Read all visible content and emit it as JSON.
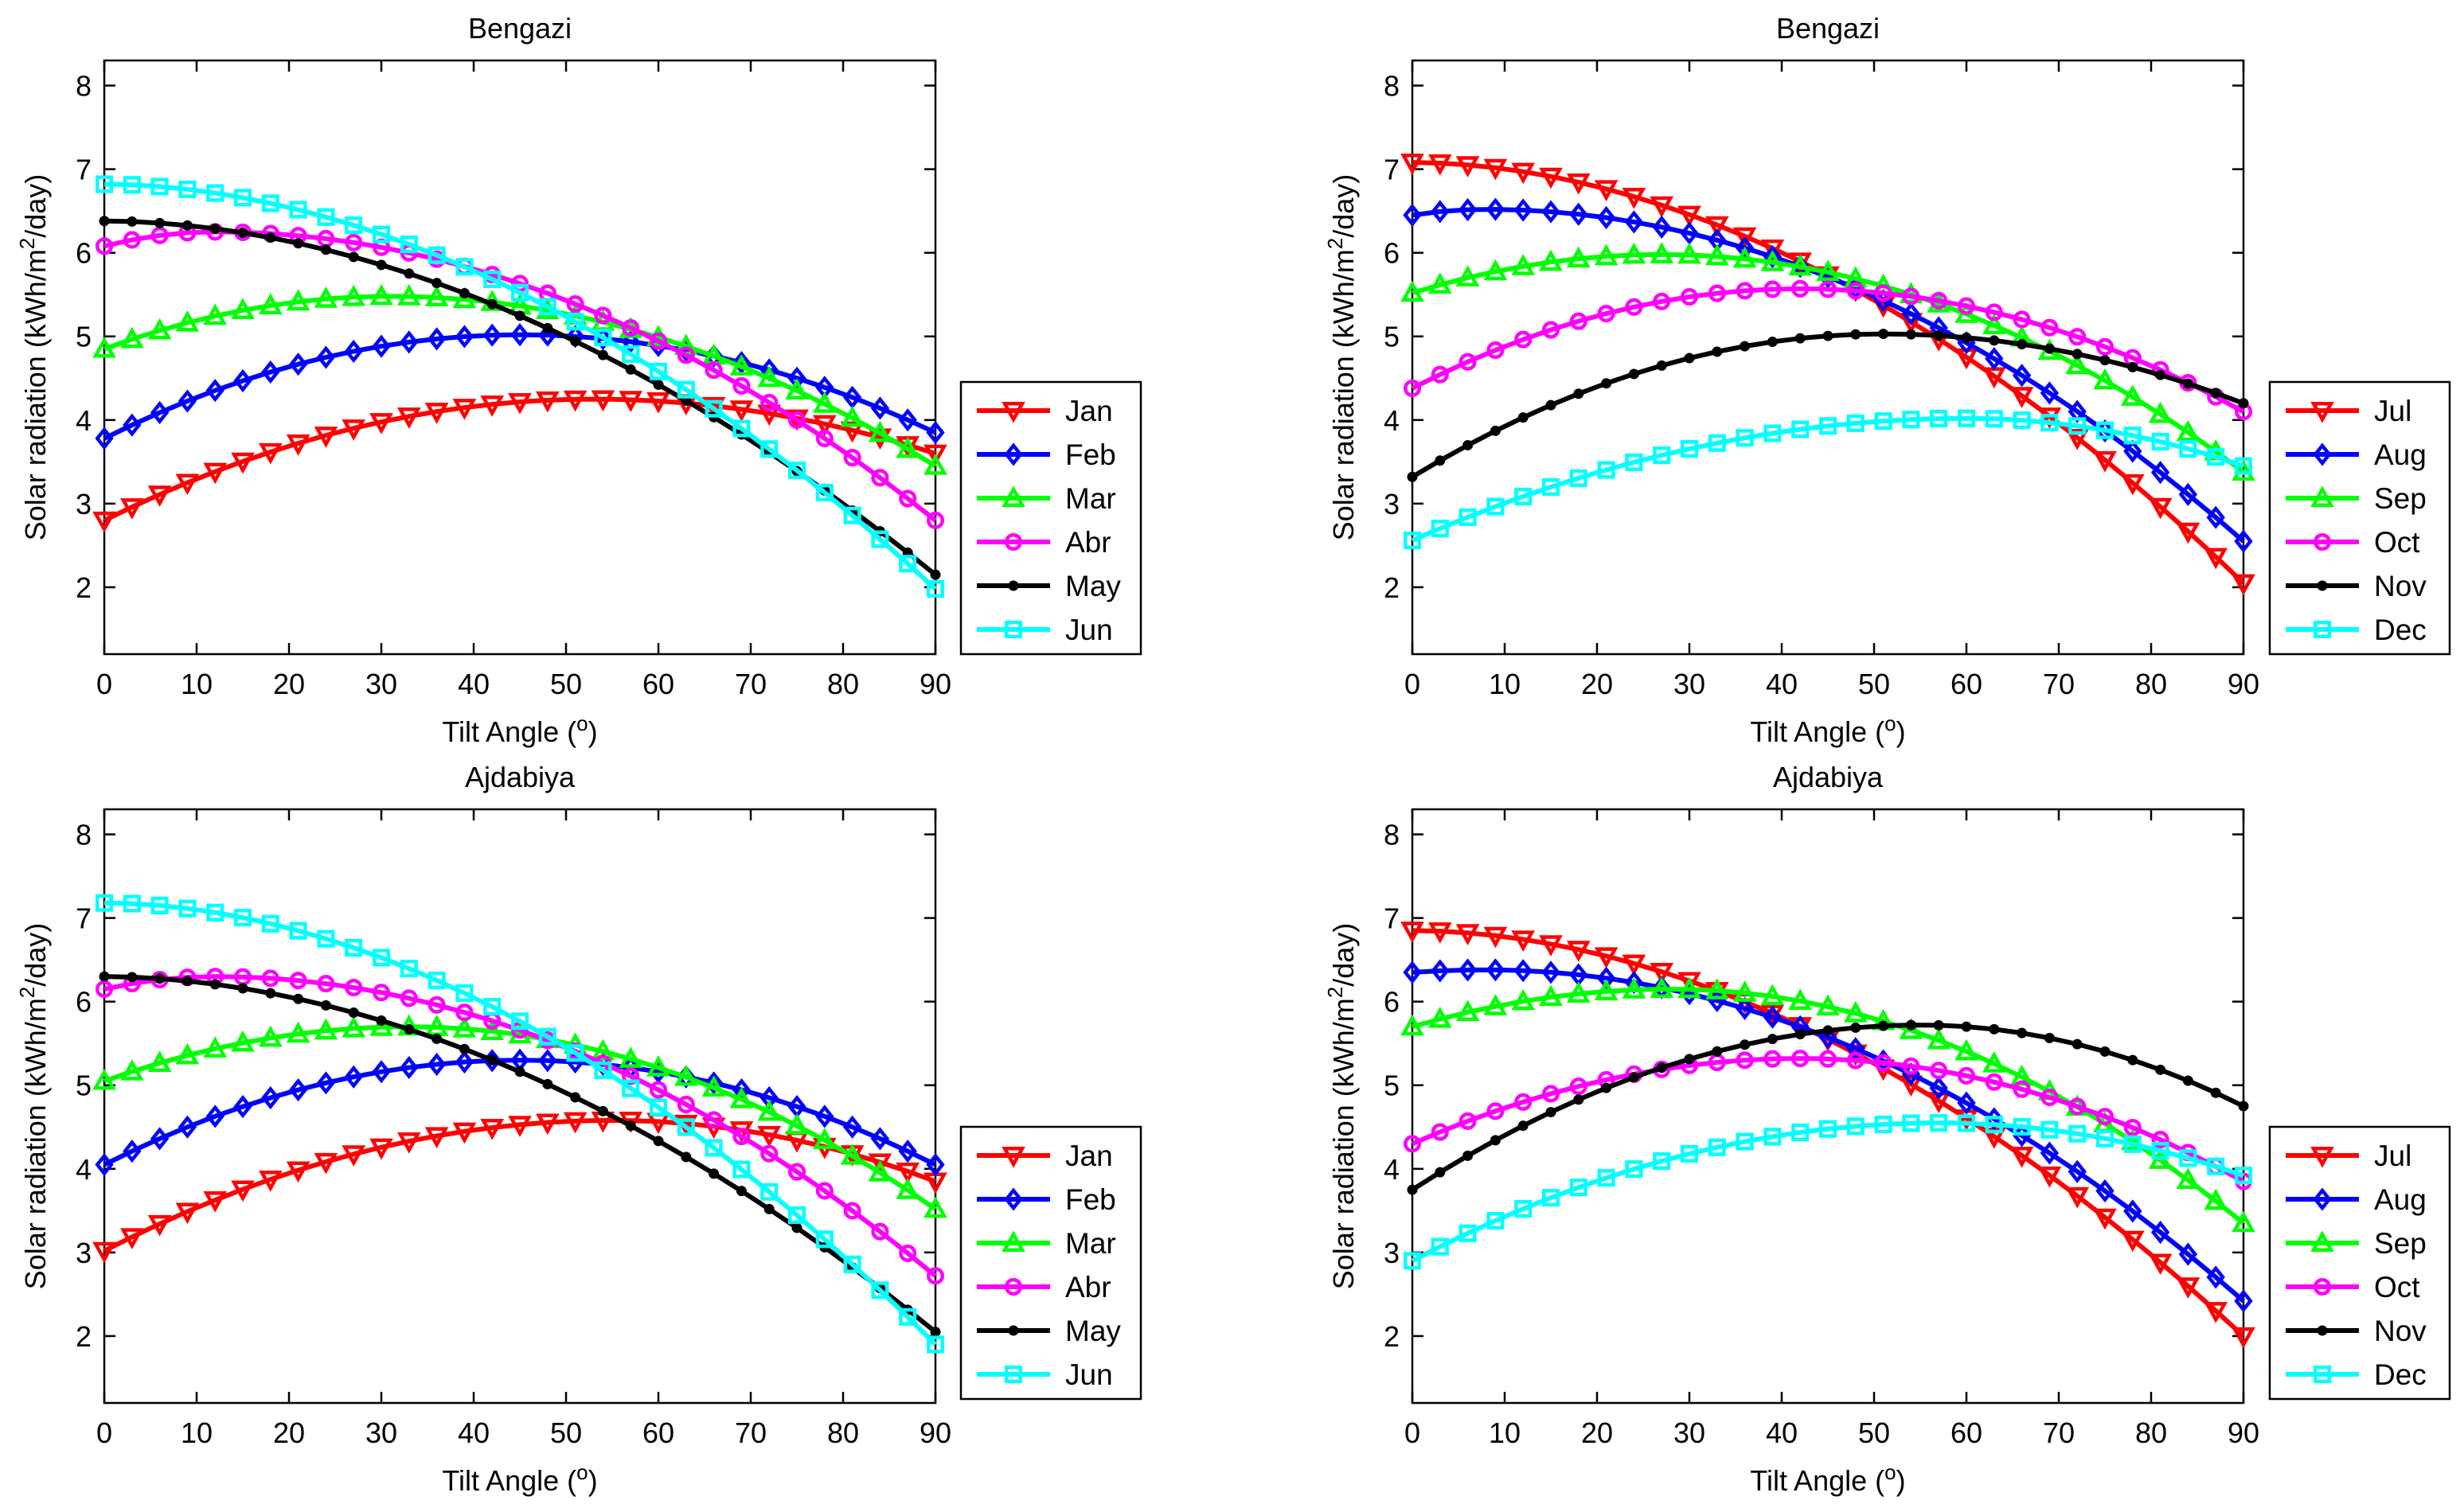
{
  "chart_data": [
    {
      "type": "line",
      "title": "Bengazi",
      "xlabel": "Tilt Angle (",
      "xlabel_sup": "o",
      "xlabel_end": ")",
      "ylabel_pre": "Solar radiation (kWh/m",
      "ylabel_sup": "2",
      "ylabel_post": "/day)",
      "xlim": [
        0,
        90
      ],
      "ylim": [
        1.2,
        8.3
      ],
      "xticks": [
        "0",
        "10",
        "20",
        "30",
        "40",
        "50",
        "60",
        "70",
        "80",
        "90"
      ],
      "yticks": [
        "2",
        "3",
        "4",
        "5",
        "6",
        "7",
        "8"
      ],
      "legend_position": "right",
      "series": [
        {
          "name": "Jan",
          "color": "#ff0000",
          "marker": "triangle-down",
          "start": 2.8,
          "peak": 4.25,
          "peakAt": 53,
          "end": 3.6
        },
        {
          "name": "Feb",
          "color": "#0000ff",
          "marker": "diamond",
          "start": 3.78,
          "peak": 5.02,
          "peakAt": 45,
          "end": 3.85
        },
        {
          "name": "Mar",
          "color": "#00ff00",
          "marker": "triangle-up",
          "start": 4.85,
          "peak": 5.48,
          "peakAt": 31,
          "end": 3.45
        },
        {
          "name": "Abr",
          "color": "#ff00ff",
          "marker": "circle",
          "start": 6.08,
          "peak": 6.25,
          "peakAt": 12,
          "end": 2.8
        },
        {
          "name": "May",
          "color": "#000000",
          "marker": "dot",
          "start": 6.38,
          "peak": 6.38,
          "peakAt": 0,
          "end": 2.15
        },
        {
          "name": "Jun",
          "color": "#00ffff",
          "marker": "square",
          "start": 6.82,
          "peak": 6.82,
          "peakAt": 0,
          "end": 1.98
        }
      ]
    },
    {
      "type": "line",
      "title": "Bengazi",
      "xlabel": "Tilt Angle (",
      "xlabel_sup": "o",
      "xlabel_end": ")",
      "ylabel_pre": "Solar radiation (kWh/m",
      "ylabel_sup": "2",
      "ylabel_post": "/day)",
      "xlim": [
        0,
        90
      ],
      "ylim": [
        1.2,
        8.3
      ],
      "xticks": [
        "0",
        "10",
        "20",
        "30",
        "40",
        "50",
        "60",
        "70",
        "80",
        "90"
      ],
      "yticks": [
        "2",
        "3",
        "4",
        "5",
        "6",
        "7",
        "8"
      ],
      "legend_position": "right",
      "series": [
        {
          "name": "Jul",
          "color": "#ff0000",
          "marker": "triangle-down",
          "start": 7.08,
          "peak": 7.08,
          "peakAt": 0,
          "end": 2.05
        },
        {
          "name": "Aug",
          "color": "#0000ff",
          "marker": "diamond",
          "start": 6.45,
          "peak": 6.52,
          "peakAt": 8,
          "end": 2.55
        },
        {
          "name": "Sep",
          "color": "#00ff00",
          "marker": "triangle-up",
          "start": 5.52,
          "peak": 5.98,
          "peakAt": 27,
          "end": 3.38
        },
        {
          "name": "Oct",
          "color": "#ff00ff",
          "marker": "circle",
          "start": 4.38,
          "peak": 5.57,
          "peakAt": 42,
          "end": 4.1
        },
        {
          "name": "Nov",
          "color": "#000000",
          "marker": "dot",
          "start": 3.32,
          "peak": 5.03,
          "peakAt": 51,
          "end": 4.2
        },
        {
          "name": "Dec",
          "color": "#00ffff",
          "marker": "square",
          "start": 2.56,
          "peak": 4.02,
          "peakAt": 60,
          "end": 3.45
        }
      ]
    },
    {
      "type": "line",
      "title": "Ajdabiya",
      "xlabel": "Tilt Angle (",
      "xlabel_sup": "o",
      "xlabel_end": ")",
      "ylabel_pre": "Solar radiation (kWh/m",
      "ylabel_sup": "2",
      "ylabel_post": "/day)",
      "xlim": [
        0,
        90
      ],
      "ylim": [
        1.2,
        8.3
      ],
      "xticks": [
        "0",
        "10",
        "20",
        "30",
        "40",
        "50",
        "60",
        "70",
        "80",
        "90"
      ],
      "yticks": [
        "2",
        "3",
        "4",
        "5",
        "6",
        "7",
        "8"
      ],
      "legend_position": "right",
      "series": [
        {
          "name": "Jan",
          "color": "#ff0000",
          "marker": "triangle-down",
          "start": 3.02,
          "peak": 4.58,
          "peakAt": 55,
          "end": 3.85
        },
        {
          "name": "Feb",
          "color": "#0000ff",
          "marker": "diamond",
          "start": 4.05,
          "peak": 5.3,
          "peakAt": 45,
          "end": 4.05
        },
        {
          "name": "Mar",
          "color": "#00ff00",
          "marker": "triangle-up",
          "start": 5.05,
          "peak": 5.7,
          "peakAt": 33,
          "end": 3.52
        },
        {
          "name": "Abr",
          "color": "#ff00ff",
          "marker": "circle",
          "start": 6.15,
          "peak": 6.3,
          "peakAt": 12,
          "end": 2.72
        },
        {
          "name": "May",
          "color": "#000000",
          "marker": "dot",
          "start": 6.3,
          "peak": 6.3,
          "peakAt": 0,
          "end": 2.05
        },
        {
          "name": "Jun",
          "color": "#00ffff",
          "marker": "square",
          "start": 7.18,
          "peak": 7.18,
          "peakAt": 0,
          "end": 1.9
        }
      ]
    },
    {
      "type": "line",
      "title": "Ajdabiya",
      "xlabel": "Tilt Angle (",
      "xlabel_sup": "o",
      "xlabel_end": ")",
      "ylabel_pre": "Solar radiation (kWh/m",
      "ylabel_sup": "2",
      "ylabel_post": "/day)",
      "xlim": [
        0,
        90
      ],
      "ylim": [
        1.2,
        8.3
      ],
      "xticks": [
        "0",
        "10",
        "20",
        "30",
        "40",
        "50",
        "60",
        "70",
        "80",
        "90"
      ],
      "yticks": [
        "2",
        "3",
        "4",
        "5",
        "6",
        "7",
        "8"
      ],
      "legend_position": "right",
      "series": [
        {
          "name": "Jul",
          "color": "#ff0000",
          "marker": "triangle-down",
          "start": 6.85,
          "peak": 6.85,
          "peakAt": 0,
          "end": 2.0
        },
        {
          "name": "Aug",
          "color": "#0000ff",
          "marker": "diamond",
          "start": 6.35,
          "peak": 6.38,
          "peakAt": 8,
          "end": 2.42
        },
        {
          "name": "Sep",
          "color": "#00ff00",
          "marker": "triangle-up",
          "start": 5.7,
          "peak": 6.15,
          "peakAt": 28,
          "end": 3.35
        },
        {
          "name": "Oct",
          "color": "#ff00ff",
          "marker": "circle",
          "start": 4.3,
          "peak": 5.32,
          "peakAt": 42,
          "end": 3.85
        },
        {
          "name": "Nov",
          "color": "#000000",
          "marker": "dot",
          "start": 3.75,
          "peak": 5.72,
          "peakAt": 55,
          "end": 4.75
        },
        {
          "name": "Dec",
          "color": "#00ffff",
          "marker": "square",
          "start": 2.9,
          "peak": 4.55,
          "peakAt": 57,
          "end": 3.92
        }
      ]
    }
  ]
}
